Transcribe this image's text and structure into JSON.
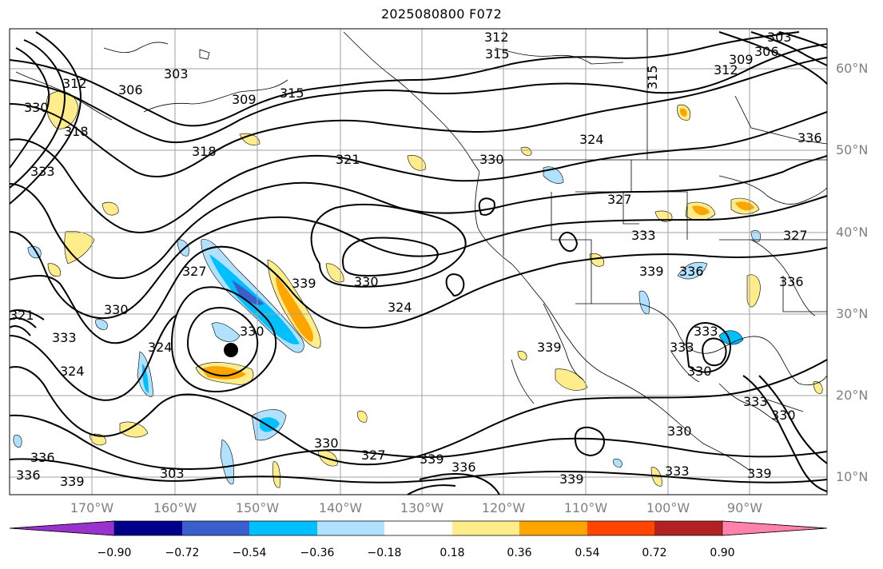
{
  "title": "2025080800 F072",
  "lat_labels": [
    "60°N",
    "50°N",
    "40°N",
    "30°N",
    "20°N",
    "10°N"
  ],
  "lon_labels": [
    "170°W",
    "160°W",
    "150°W",
    "140°W",
    "130°W",
    "120°W",
    "110°W",
    "100°W",
    "90°W"
  ],
  "contour_labels": [
    "312",
    "315",
    "303",
    "306",
    "312",
    "309",
    "315",
    "315",
    "306",
    "303",
    "309",
    "312",
    "330",
    "333",
    "318",
    "318",
    "321",
    "324",
    "321",
    "324",
    "327",
    "330",
    "330",
    "333",
    "327",
    "324",
    "330",
    "333",
    "336",
    "339",
    "336",
    "333",
    "327",
    "330",
    "336",
    "339",
    "324",
    "330",
    "336",
    "339",
    "327",
    "330",
    "333",
    "336",
    "339",
    "333",
    "303",
    "336",
    "339",
    "330",
    "339",
    "333",
    "330",
    "339"
  ],
  "colorbar": {
    "ticks": [
      "−0.90",
      "−0.72",
      "−0.54",
      "−0.36",
      "−0.18",
      "0.18",
      "0.36",
      "0.54",
      "0.72",
      "0.90"
    ],
    "colors": [
      "#9a32cd",
      "#00008b",
      "#3a5fcd",
      "#00bfff",
      "#b0e2ff",
      "#ffffff",
      "#ffec8b",
      "#ffa500",
      "#ff4500",
      "#b22222",
      "#ff82ab"
    ]
  },
  "storm_marker": "black-dot",
  "colors": {
    "grid": "#a0a0a0",
    "contour": "#000000",
    "coast": "#000000",
    "axis_label": "#808080"
  }
}
